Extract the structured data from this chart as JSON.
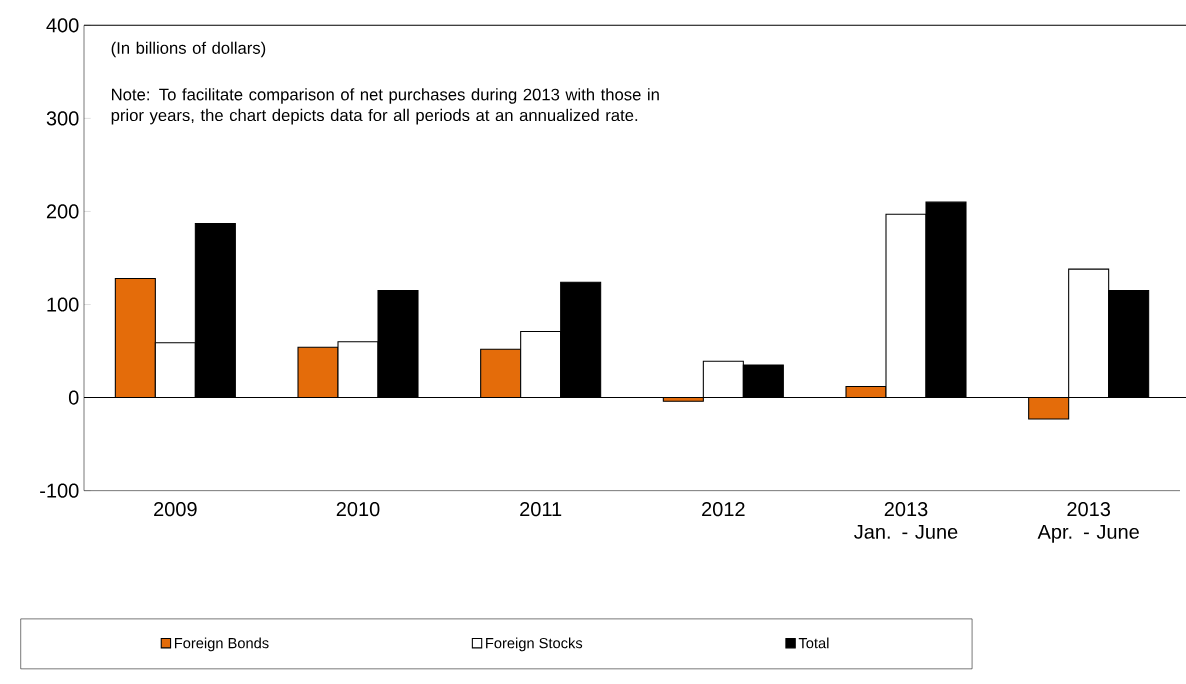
{
  "chart_data": {
    "type": "bar",
    "annotations": [
      "(In billions of dollars)",
      "Note: To facilitate comparison of net purchases during 2013 with those in prior years, the chart depicts data for all periods at an annualized rate."
    ],
    "categories": [
      "2009",
      "2010",
      "2011",
      "2012",
      "2013 Jan. - June",
      "2013 Apr. - June"
    ],
    "series": [
      {
        "name": "Foreign Bonds",
        "color": "#e46c0a",
        "values": [
          128,
          54,
          52,
          -4,
          12,
          -23
        ]
      },
      {
        "name": "Foreign Stocks",
        "color": "#ffffff",
        "values": [
          59,
          60,
          71,
          39,
          197,
          138
        ]
      },
      {
        "name": "Total",
        "color": "#000000",
        "values": [
          187,
          115,
          124,
          35,
          210,
          115
        ]
      }
    ],
    "ylim": [
      -100,
      400
    ],
    "yticks": [
      -100,
      0,
      100,
      200,
      300,
      400
    ],
    "legend": "bottom"
  }
}
